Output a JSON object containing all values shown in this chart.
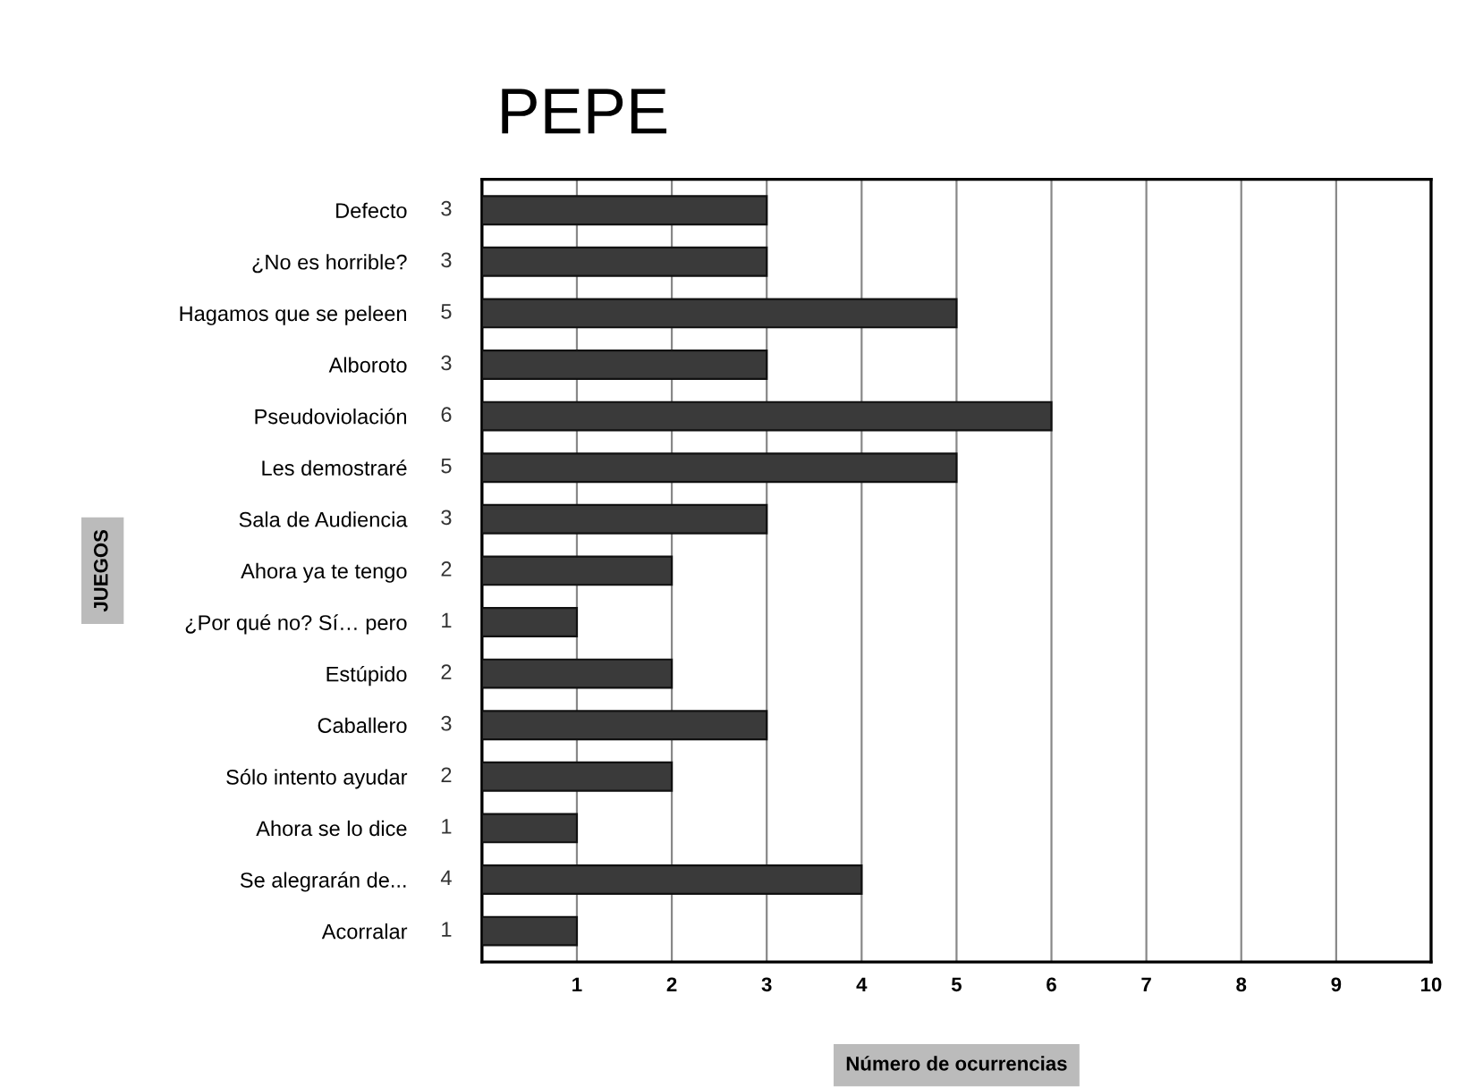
{
  "chart_data": {
    "type": "bar",
    "orientation": "horizontal",
    "title": "PEPE",
    "xlabel": "Número de ocurrencias",
    "ylabel": "JUEGOS",
    "categories": [
      "Defecto",
      "¿No es horrible?",
      "Hagamos que se peleen",
      "Alboroto",
      "Pseudoviolación",
      "Les demostraré",
      "Sala de Audiencia",
      "Ahora ya te tengo",
      "¿Por qué no? Sí… pero",
      "Estúpido",
      "Caballero",
      "Sólo intento ayudar",
      "Ahora se lo dice",
      "Se alegrarán de...",
      "Acorralar"
    ],
    "values": [
      3,
      3,
      5,
      3,
      6,
      5,
      3,
      2,
      1,
      2,
      3,
      2,
      1,
      4,
      1
    ],
    "color": "#3a3a3a",
    "xlim": [
      0,
      10
    ],
    "xticks": [
      1,
      2,
      3,
      4,
      5,
      6,
      7,
      8,
      9,
      10
    ],
    "grid": "x",
    "data_labels": true
  }
}
